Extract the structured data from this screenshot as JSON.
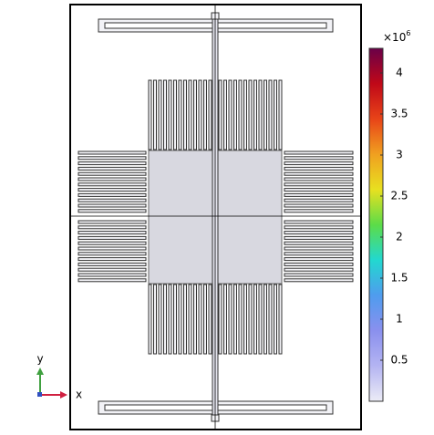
{
  "chart_data": {
    "type": "surface",
    "xlabel": "x",
    "ylabel": "y",
    "colorbar": {
      "exponent_base": "×10",
      "exponent_power": "6",
      "clim": [
        0,
        4.3
      ],
      "ticks": [
        0.5,
        1,
        1.5,
        2,
        2.5,
        3,
        3.5,
        4
      ],
      "colormap": [
        "#ececf6",
        "#b4b4f2",
        "#8a90ee",
        "#4f9cee",
        "#22d8d0",
        "#5cdc48",
        "#e8e020",
        "#f0a020",
        "#e84418",
        "#c00818",
        "#6a0048"
      ]
    }
  }
}
